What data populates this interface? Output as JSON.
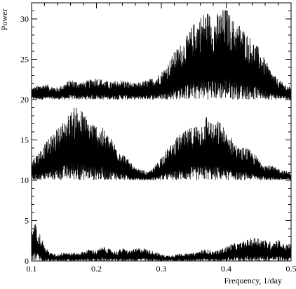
{
  "chart_data": {
    "type": "line",
    "title": "",
    "xlabel": "Frequency, 1/day",
    "ylabel": "Power",
    "xlim": [
      0.1,
      0.5
    ],
    "ylim": [
      0,
      32
    ],
    "grid": false,
    "legend": "none",
    "line_color": "#000000",
    "x_ticks": [
      0.1,
      0.2,
      0.3,
      0.4,
      0.5
    ],
    "x_tick_labels": [
      "0.1",
      "0.2",
      "0.3",
      "0.4",
      "0.5"
    ],
    "y_ticks": [
      0,
      5,
      10,
      15,
      20,
      25,
      30
    ],
    "y_tick_labels": [
      "0",
      "5",
      "10",
      "15",
      "20",
      "25",
      "30"
    ],
    "y_minor_step": 1,
    "x_minor_step": 0.02,
    "series": [
      {
        "baseline": 20,
        "envelope": {
          "x": [
            0.1,
            0.12,
            0.14,
            0.16,
            0.18,
            0.2,
            0.22,
            0.24,
            0.26,
            0.28,
            0.29,
            0.3,
            0.31,
            0.32,
            0.33,
            0.34,
            0.35,
            0.36,
            0.37,
            0.38,
            0.39,
            0.4,
            0.41,
            0.42,
            0.43,
            0.44,
            0.45,
            0.46,
            0.47,
            0.48,
            0.49,
            0.5
          ],
          "y": [
            21.5,
            22.0,
            21.5,
            22.5,
            22.2,
            22.8,
            22.2,
            22.5,
            22.0,
            22.5,
            22.8,
            23.5,
            24.5,
            26.0,
            27.0,
            28.0,
            29.5,
            30.5,
            31.2,
            30.2,
            31.0,
            31.5,
            30.0,
            29.5,
            28.5,
            27.5,
            26.5,
            25.0,
            23.5,
            22.5,
            22.0,
            21.5
          ]
        }
      },
      {
        "baseline": 10,
        "envelope": {
          "x": [
            0.1,
            0.11,
            0.12,
            0.13,
            0.14,
            0.15,
            0.16,
            0.17,
            0.18,
            0.19,
            0.2,
            0.21,
            0.22,
            0.23,
            0.24,
            0.25,
            0.26,
            0.27,
            0.28,
            0.29,
            0.3,
            0.31,
            0.32,
            0.33,
            0.34,
            0.35,
            0.36,
            0.37,
            0.38,
            0.39,
            0.4,
            0.41,
            0.42,
            0.43,
            0.44,
            0.45,
            0.46,
            0.47,
            0.48,
            0.49,
            0.5
          ],
          "y": [
            12.5,
            13.5,
            14.5,
            15.5,
            16.5,
            17.5,
            18.5,
            19.5,
            18.5,
            17.5,
            17.0,
            16.5,
            15.5,
            14.5,
            13.5,
            12.5,
            11.5,
            11.3,
            11.0,
            11.8,
            13.0,
            14.0,
            15.0,
            15.8,
            16.2,
            17.0,
            17.0,
            18.2,
            17.0,
            17.5,
            16.0,
            15.2,
            14.0,
            14.2,
            13.5,
            12.8,
            12.0,
            11.8,
            11.5,
            11.2,
            11.0
          ]
        }
      },
      {
        "baseline": 0,
        "envelope": {
          "x": [
            0.1,
            0.102,
            0.105,
            0.11,
            0.115,
            0.12,
            0.13,
            0.14,
            0.15,
            0.16,
            0.17,
            0.18,
            0.19,
            0.2,
            0.21,
            0.22,
            0.23,
            0.24,
            0.25,
            0.26,
            0.27,
            0.28,
            0.29,
            0.3,
            0.31,
            0.32,
            0.33,
            0.34,
            0.35,
            0.36,
            0.37,
            0.38,
            0.39,
            0.4,
            0.41,
            0.42,
            0.43,
            0.44,
            0.45,
            0.46,
            0.47,
            0.48,
            0.49,
            0.5
          ],
          "y": [
            3.5,
            4.5,
            4.8,
            4.0,
            3.0,
            1.8,
            1.0,
            0.8,
            1.2,
            1.0,
            1.0,
            1.2,
            1.5,
            1.3,
            1.8,
            1.5,
            1.2,
            1.6,
            1.3,
            1.5,
            1.7,
            1.4,
            1.2,
            0.8,
            0.7,
            0.8,
            1.0,
            0.9,
            1.0,
            1.3,
            1.5,
            1.2,
            1.4,
            1.8,
            2.2,
            2.2,
            2.6,
            2.9,
            3.0,
            2.6,
            2.4,
            2.8,
            2.0,
            2.2
          ]
        }
      }
    ]
  }
}
